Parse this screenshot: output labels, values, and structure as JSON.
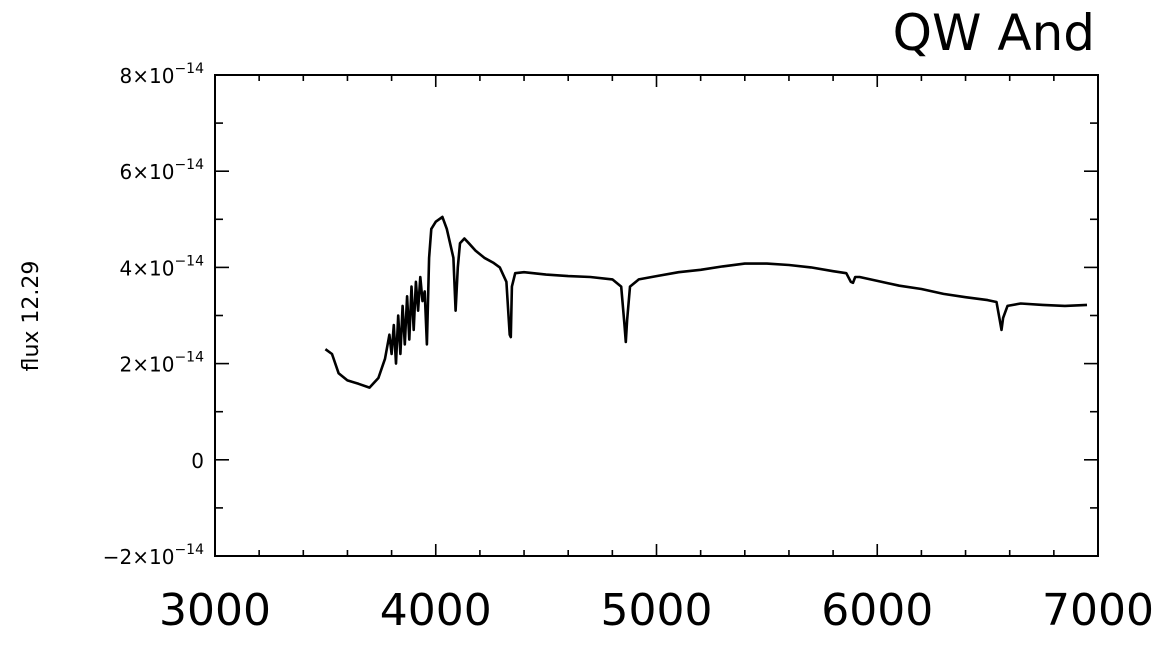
{
  "chart_data": {
    "type": "line",
    "title": "QW And",
    "xlabel": "",
    "ylabel": "flux 12.29",
    "xlim": [
      3000,
      7000
    ],
    "ylim": [
      -2e-14,
      8e-14
    ],
    "grid": false,
    "xticks": [
      3000,
      4000,
      5000,
      6000,
      7000
    ],
    "xtick_labels": [
      "3000",
      "4000",
      "5000",
      "6000",
      "7000"
    ],
    "yticks": [
      -2e-14,
      0,
      2e-14,
      4e-14,
      6e-14,
      8e-14
    ],
    "ytick_labels": [
      {
        "mant": "−2×10",
        "exp": "−14"
      },
      {
        "mant": "0",
        "exp": ""
      },
      {
        "mant": "2×10",
        "exp": "−14"
      },
      {
        "mant": "4×10",
        "exp": "−14"
      },
      {
        "mant": "6×10",
        "exp": "−14"
      },
      {
        "mant": "8×10",
        "exp": "−14"
      }
    ],
    "series": [
      {
        "line_color": "#000000",
        "x": [
          3500,
          3530,
          3560,
          3600,
          3650,
          3700,
          3740,
          3770,
          3790,
          3800,
          3810,
          3820,
          3830,
          3840,
          3850,
          3860,
          3870,
          3880,
          3890,
          3900,
          3910,
          3920,
          3930,
          3940,
          3950,
          3960,
          3970,
          3980,
          4000,
          4030,
          4050,
          4080,
          4090,
          4100,
          4110,
          4130,
          4150,
          4180,
          4220,
          4260,
          4290,
          4320,
          4335,
          4340,
          4345,
          4360,
          4400,
          4500,
          4600,
          4700,
          4800,
          4840,
          4855,
          4861,
          4867,
          4880,
          4920,
          5000,
          5100,
          5200,
          5300,
          5400,
          5500,
          5600,
          5700,
          5800,
          5860,
          5880,
          5890,
          5900,
          5920,
          6000,
          6100,
          6200,
          6300,
          6400,
          6500,
          6540,
          6555,
          6563,
          6570,
          6590,
          6650,
          6750,
          6850,
          6950
        ],
        "y": [
          2.3e-14,
          2.2e-14,
          1.8e-14,
          1.65e-14,
          1.58e-14,
          1.5e-14,
          1.7e-14,
          2.1e-14,
          2.6e-14,
          2.2e-14,
          2.8e-14,
          2e-14,
          3e-14,
          2.2e-14,
          3.2e-14,
          2.4e-14,
          3.4e-14,
          2.5e-14,
          3.6e-14,
          2.7e-14,
          3.7e-14,
          3.1e-14,
          3.8e-14,
          3.3e-14,
          3.5e-14,
          2.4e-14,
          4.2e-14,
          4.8e-14,
          4.95e-14,
          5.05e-14,
          4.8e-14,
          4.2e-14,
          3.1e-14,
          4e-14,
          4.5e-14,
          4.6e-14,
          4.5e-14,
          4.35e-14,
          4.2e-14,
          4.1e-14,
          4e-14,
          3.7e-14,
          2.6e-14,
          2.55e-14,
          3.6e-14,
          3.88e-14,
          3.9e-14,
          3.85e-14,
          3.82e-14,
          3.8e-14,
          3.75e-14,
          3.6e-14,
          2.8e-14,
          2.45e-14,
          2.9e-14,
          3.6e-14,
          3.75e-14,
          3.82e-14,
          3.9e-14,
          3.95e-14,
          4.02e-14,
          4.08e-14,
          4.08e-14,
          4.05e-14,
          4e-14,
          3.92e-14,
          3.88e-14,
          3.7e-14,
          3.68e-14,
          3.8e-14,
          3.8e-14,
          3.72e-14,
          3.62e-14,
          3.55e-14,
          3.45e-14,
          3.38e-14,
          3.32e-14,
          3.28e-14,
          2.9e-14,
          2.7e-14,
          2.95e-14,
          3.2e-14,
          3.25e-14,
          3.22e-14,
          3.2e-14,
          3.22e-14
        ]
      }
    ]
  }
}
